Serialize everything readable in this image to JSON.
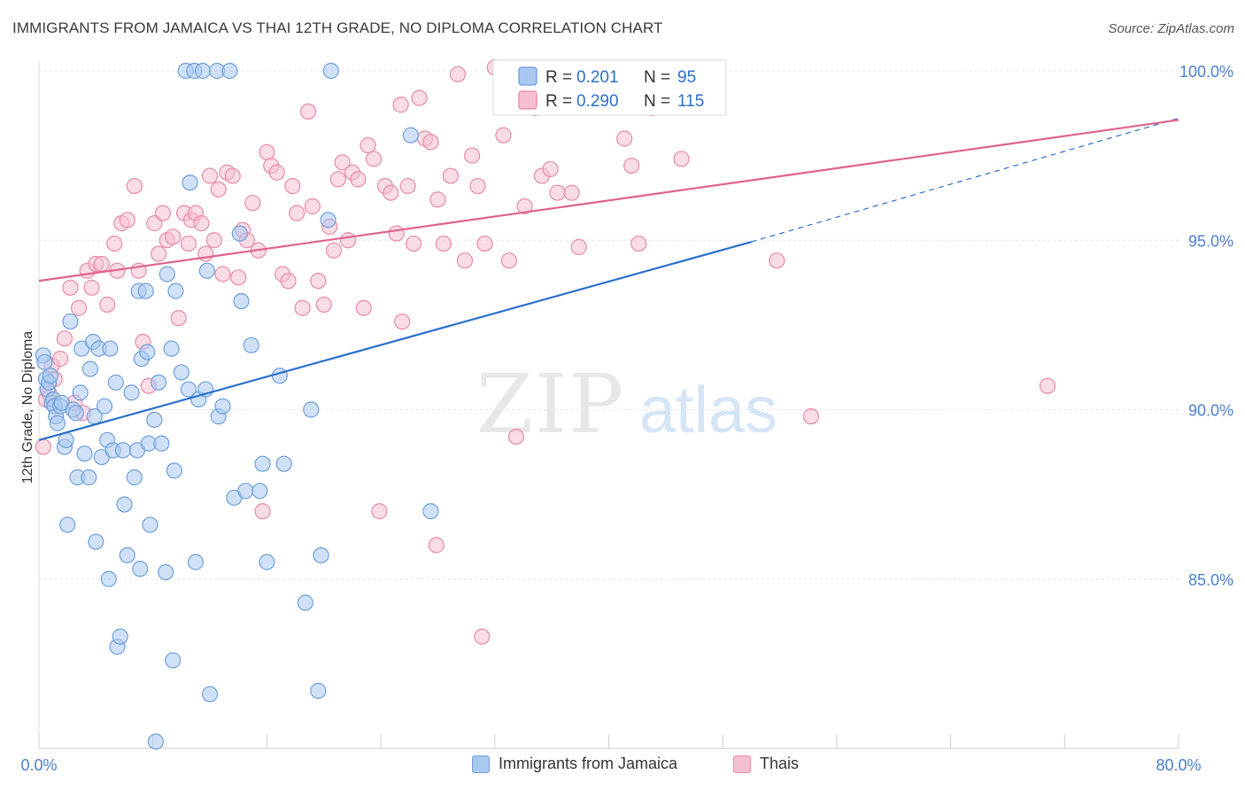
{
  "title": "IMMIGRANTS FROM JAMAICA VS THAI 12TH GRADE, NO DIPLOMA CORRELATION CHART",
  "source": "Source: ZipAtlas.com",
  "watermark": {
    "zip": "ZIP",
    "atlas": "atlas"
  },
  "colors": {
    "blue_fill": "#a9c8f0",
    "blue_stroke": "#6f9fdc",
    "blue_line": "#2b6fcc",
    "pink_fill": "#f6bfd0",
    "pink_stroke": "#e889a8",
    "pink_line": "#e0628d",
    "tick_text": "#4a7fd0",
    "grid": "#e4e4e4"
  },
  "legend": {
    "rows": [
      {
        "r_label": "R =",
        "r_value": "0.201",
        "n_label": "N =",
        "n_value": "95",
        "series": "blue"
      },
      {
        "r_label": "R =",
        "r_value": "0.290",
        "n_label": "N =",
        "n_value": "115",
        "series": "pink"
      }
    ]
  },
  "bottom_legend": [
    {
      "label": "Immigrants from Jamaica",
      "series": "blue"
    },
    {
      "label": "Thais",
      "series": "pink"
    }
  ],
  "chart_data": {
    "type": "scatter",
    "title": "IMMIGRANTS FROM JAMAICA VS THAI 12TH GRADE, NO DIPLOMA CORRELATION CHART",
    "xlabel": "",
    "ylabel": "12th Grade, No Diploma",
    "xlim": [
      0,
      80
    ],
    "ylim": [
      80.0,
      100.8
    ],
    "x_tick_labels": [
      {
        "value": 0,
        "label": "0.0%"
      },
      {
        "value": 80,
        "label": "80.0%"
      }
    ],
    "y_tick_labels": [
      {
        "value": 100,
        "label": "100.0%"
      },
      {
        "value": 95,
        "label": "95.0%"
      },
      {
        "value": 90,
        "label": "90.0%"
      },
      {
        "value": 85,
        "label": "85.0%"
      }
    ],
    "grid": true,
    "legend_position": "top-center",
    "series": [
      {
        "name": "Immigrants from Jamaica",
        "color": "#a9c8f0",
        "r": 0.201,
        "n": 95,
        "trend": {
          "x": [
            0,
            50
          ],
          "y": [
            89.1,
            94.95
          ],
          "dashed_to": [
            80,
            98.6
          ]
        },
        "points": [
          [
            0.3,
            91.6
          ],
          [
            0.4,
            91.4
          ],
          [
            0.5,
            90.9
          ],
          [
            0.6,
            90.6
          ],
          [
            0.7,
            90.8
          ],
          [
            0.8,
            91.0
          ],
          [
            0.9,
            90.2
          ],
          [
            1.0,
            90.3
          ],
          [
            1.1,
            90.1
          ],
          [
            1.2,
            89.8
          ],
          [
            1.3,
            89.6
          ],
          [
            1.5,
            90.1
          ],
          [
            1.6,
            90.2
          ],
          [
            1.8,
            88.9
          ],
          [
            1.9,
            89.1
          ],
          [
            2.0,
            86.6
          ],
          [
            2.2,
            92.6
          ],
          [
            2.4,
            90.0
          ],
          [
            2.6,
            89.9
          ],
          [
            2.7,
            88.0
          ],
          [
            2.9,
            90.5
          ],
          [
            3.0,
            91.8
          ],
          [
            3.2,
            88.7
          ],
          [
            3.5,
            88.0
          ],
          [
            3.6,
            91.2
          ],
          [
            3.8,
            92.0
          ],
          [
            3.9,
            89.8
          ],
          [
            4.0,
            86.1
          ],
          [
            4.2,
            91.8
          ],
          [
            4.4,
            88.6
          ],
          [
            4.6,
            90.1
          ],
          [
            4.8,
            89.1
          ],
          [
            4.9,
            85.0
          ],
          [
            5.0,
            91.8
          ],
          [
            5.2,
            88.8
          ],
          [
            5.4,
            90.8
          ],
          [
            5.5,
            83.0
          ],
          [
            5.7,
            83.3
          ],
          [
            5.9,
            88.8
          ],
          [
            6.0,
            87.2
          ],
          [
            6.2,
            85.7
          ],
          [
            6.5,
            90.5
          ],
          [
            6.7,
            88.0
          ],
          [
            6.9,
            88.8
          ],
          [
            7.0,
            93.5
          ],
          [
            7.1,
            85.3
          ],
          [
            7.2,
            91.5
          ],
          [
            7.5,
            93.5
          ],
          [
            7.6,
            91.7
          ],
          [
            7.7,
            89.0
          ],
          [
            7.8,
            86.6
          ],
          [
            8.1,
            89.7
          ],
          [
            8.2,
            80.2
          ],
          [
            8.4,
            90.8
          ],
          [
            8.6,
            89.0
          ],
          [
            8.9,
            85.2
          ],
          [
            9.0,
            94.0
          ],
          [
            9.3,
            91.8
          ],
          [
            9.4,
            82.6
          ],
          [
            9.5,
            88.2
          ],
          [
            9.6,
            93.5
          ],
          [
            10.0,
            91.1
          ],
          [
            10.3,
            100.0
          ],
          [
            10.5,
            90.6
          ],
          [
            10.6,
            96.7
          ],
          [
            10.9,
            100.0
          ],
          [
            11.0,
            85.5
          ],
          [
            11.2,
            90.3
          ],
          [
            11.5,
            100.0
          ],
          [
            11.7,
            90.6
          ],
          [
            11.8,
            94.1
          ],
          [
            12.0,
            81.6
          ],
          [
            12.5,
            100.0
          ],
          [
            12.6,
            89.8
          ],
          [
            12.9,
            90.1
          ],
          [
            13.4,
            100.0
          ],
          [
            13.7,
            87.4
          ],
          [
            14.1,
            95.2
          ],
          [
            14.2,
            93.2
          ],
          [
            14.5,
            87.6
          ],
          [
            14.9,
            91.9
          ],
          [
            15.5,
            87.6
          ],
          [
            15.7,
            88.4
          ],
          [
            16.0,
            85.5
          ],
          [
            16.9,
            91.0
          ],
          [
            17.2,
            88.4
          ],
          [
            18.7,
            84.3
          ],
          [
            19.1,
            90.0
          ],
          [
            19.6,
            81.7
          ],
          [
            19.8,
            85.7
          ],
          [
            20.3,
            95.6
          ],
          [
            20.5,
            100.0
          ],
          [
            26.1,
            98.1
          ],
          [
            27.5,
            87.0
          ],
          [
            41.0,
            100.0
          ]
        ]
      },
      {
        "name": "Thais",
        "color": "#f6bfd0",
        "r": 0.29,
        "n": 115,
        "trend": {
          "x": [
            0,
            80
          ],
          "y": [
            93.8,
            98.55
          ]
        },
        "points": [
          [
            0.3,
            88.9
          ],
          [
            0.5,
            90.3
          ],
          [
            0.7,
            90.5
          ],
          [
            0.9,
            91.3
          ],
          [
            1.1,
            90.9
          ],
          [
            1.5,
            91.5
          ],
          [
            1.8,
            92.1
          ],
          [
            2.2,
            93.6
          ],
          [
            2.5,
            90.2
          ],
          [
            2.8,
            93.0
          ],
          [
            3.1,
            89.9
          ],
          [
            3.4,
            94.1
          ],
          [
            3.7,
            93.6
          ],
          [
            4.0,
            94.3
          ],
          [
            4.4,
            94.3
          ],
          [
            4.8,
            93.1
          ],
          [
            5.3,
            94.9
          ],
          [
            5.5,
            94.1
          ],
          [
            5.8,
            95.5
          ],
          [
            6.2,
            95.6
          ],
          [
            6.7,
            96.6
          ],
          [
            7.0,
            94.1
          ],
          [
            7.3,
            92.0
          ],
          [
            7.7,
            90.7
          ],
          [
            8.1,
            95.5
          ],
          [
            8.4,
            94.6
          ],
          [
            8.7,
            95.8
          ],
          [
            9.0,
            95.0
          ],
          [
            9.4,
            95.1
          ],
          [
            9.8,
            92.7
          ],
          [
            10.2,
            95.8
          ],
          [
            10.5,
            94.9
          ],
          [
            10.7,
            95.6
          ],
          [
            11.0,
            95.8
          ],
          [
            11.4,
            95.5
          ],
          [
            11.7,
            94.6
          ],
          [
            12.0,
            96.9
          ],
          [
            12.3,
            95.0
          ],
          [
            12.6,
            96.5
          ],
          [
            12.9,
            94.0
          ],
          [
            13.2,
            97.0
          ],
          [
            13.6,
            96.9
          ],
          [
            14.0,
            93.9
          ],
          [
            14.3,
            95.3
          ],
          [
            14.6,
            95.0
          ],
          [
            15.0,
            96.1
          ],
          [
            15.4,
            94.7
          ],
          [
            15.7,
            87.0
          ],
          [
            16.0,
            97.6
          ],
          [
            16.3,
            97.2
          ],
          [
            16.7,
            97.0
          ],
          [
            17.1,
            94.0
          ],
          [
            17.5,
            93.8
          ],
          [
            17.8,
            96.6
          ],
          [
            18.1,
            95.8
          ],
          [
            18.5,
            93.0
          ],
          [
            18.9,
            98.8
          ],
          [
            19.2,
            96.0
          ],
          [
            19.6,
            93.8
          ],
          [
            20.0,
            93.1
          ],
          [
            20.4,
            95.4
          ],
          [
            20.7,
            94.7
          ],
          [
            21.0,
            96.8
          ],
          [
            21.3,
            97.3
          ],
          [
            21.7,
            95.0
          ],
          [
            22.0,
            97.0
          ],
          [
            22.4,
            96.8
          ],
          [
            22.8,
            93.0
          ],
          [
            23.1,
            97.8
          ],
          [
            23.5,
            97.4
          ],
          [
            23.9,
            87.0
          ],
          [
            24.3,
            96.6
          ],
          [
            24.7,
            96.4
          ],
          [
            25.1,
            95.2
          ],
          [
            25.5,
            92.6
          ],
          [
            25.9,
            96.6
          ],
          [
            26.3,
            94.9
          ],
          [
            26.7,
            99.2
          ],
          [
            27.1,
            98.0
          ],
          [
            27.5,
            97.9
          ],
          [
            28.0,
            96.2
          ],
          [
            28.4,
            94.9
          ],
          [
            28.9,
            96.9
          ],
          [
            29.4,
            99.9
          ],
          [
            29.9,
            94.4
          ],
          [
            30.4,
            97.5
          ],
          [
            30.8,
            96.6
          ],
          [
            31.3,
            94.9
          ],
          [
            32.0,
            100.1
          ],
          [
            32.6,
            98.1
          ],
          [
            33.0,
            94.4
          ],
          [
            33.5,
            89.2
          ],
          [
            34.1,
            96.0
          ],
          [
            34.8,
            98.9
          ],
          [
            35.3,
            96.9
          ],
          [
            35.9,
            97.1
          ],
          [
            36.4,
            96.4
          ],
          [
            37.4,
            96.4
          ],
          [
            37.9,
            94.8
          ],
          [
            38.6,
            99.9
          ],
          [
            39.3,
            99.0
          ],
          [
            40.4,
            100.0
          ],
          [
            41.1,
            98.0
          ],
          [
            41.6,
            97.2
          ],
          [
            42.1,
            94.9
          ],
          [
            43.0,
            98.9
          ],
          [
            43.5,
            99.1
          ],
          [
            44.4,
            100.0
          ],
          [
            45.1,
            97.4
          ],
          [
            51.8,
            94.4
          ],
          [
            54.2,
            89.8
          ],
          [
            70.8,
            90.7
          ],
          [
            25.4,
            99.0
          ],
          [
            31.1,
            83.3
          ],
          [
            27.9,
            86.0
          ]
        ]
      }
    ]
  }
}
